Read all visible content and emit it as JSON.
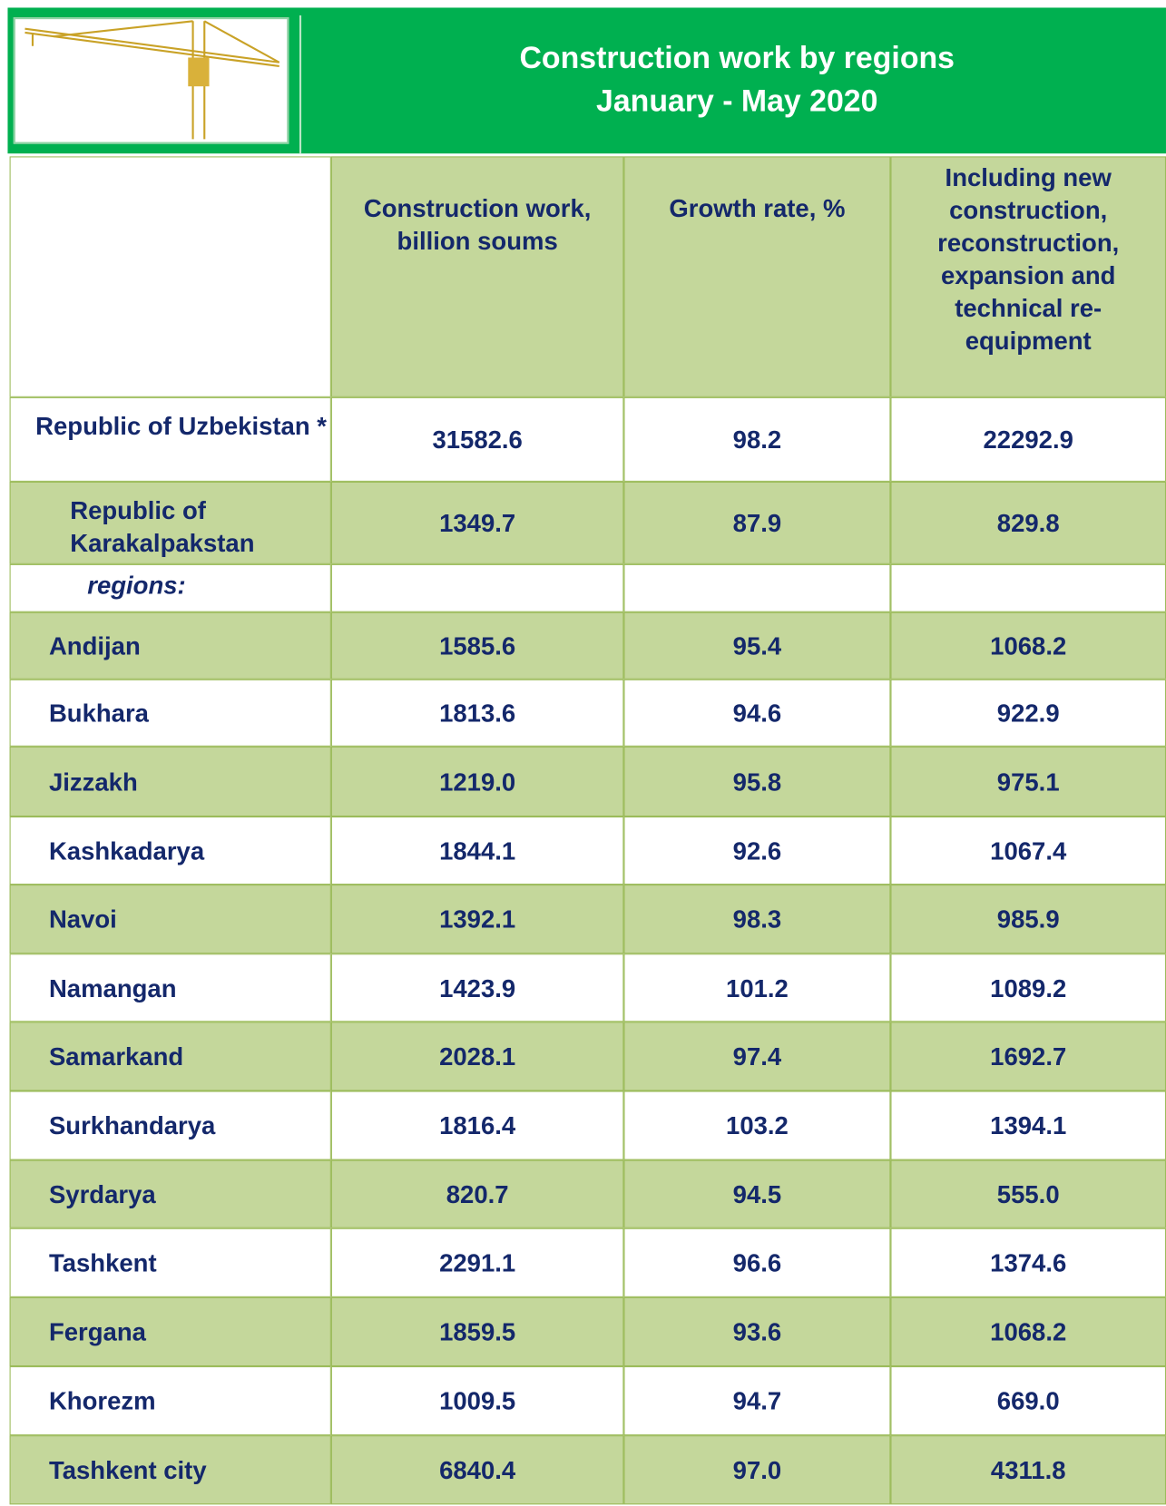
{
  "header": {
    "title": "Construction work by regions",
    "subtitle": "January - May 2020"
  },
  "table": {
    "columns": [
      "Construction work, billion soums",
      "Growth rate, %",
      "Including new construction, reconstruction, expansion and technical re-equipment"
    ],
    "rows": [
      [
        "Republic of Uzbekistan *",
        "31582.6",
        "98.2",
        "22292.9"
      ],
      [
        "Republic of Karakalpakstan",
        "1349.7",
        "87.9",
        "829.8"
      ],
      [
        "regions:"
      ],
      [
        "Andijan",
        "1585.6",
        "95.4",
        "1068.2"
      ],
      [
        "Bukhara",
        "1813.6",
        "94.6",
        "922.9"
      ],
      [
        "Jizzakh",
        "1219.0",
        "95.8",
        "975.1"
      ],
      [
        "Kashkadarya",
        "1844.1",
        "92.6",
        "1067.4"
      ],
      [
        "Navoi",
        "1392.1",
        "98.3",
        "985.9"
      ],
      [
        "Namangan",
        "1423.9",
        "101.2",
        "1089.2"
      ],
      [
        "Samarkand",
        "2028.1",
        "97.4",
        "1692.7"
      ],
      [
        "Surkhandarya",
        "1816.4",
        "103.2",
        "1394.1"
      ],
      [
        "Syrdarya",
        "820.7",
        "94.5",
        "555.0"
      ],
      [
        "Tashkent",
        "2291.1",
        "96.6",
        "1374.6"
      ],
      [
        "Fergana",
        "1859.5",
        "93.6",
        "1068.2"
      ],
      [
        "Khorezm",
        "1009.5",
        "94.7",
        "669.0"
      ],
      [
        "Tashkent city",
        "6840.4",
        "97.0",
        "4311.8"
      ]
    ]
  }
}
